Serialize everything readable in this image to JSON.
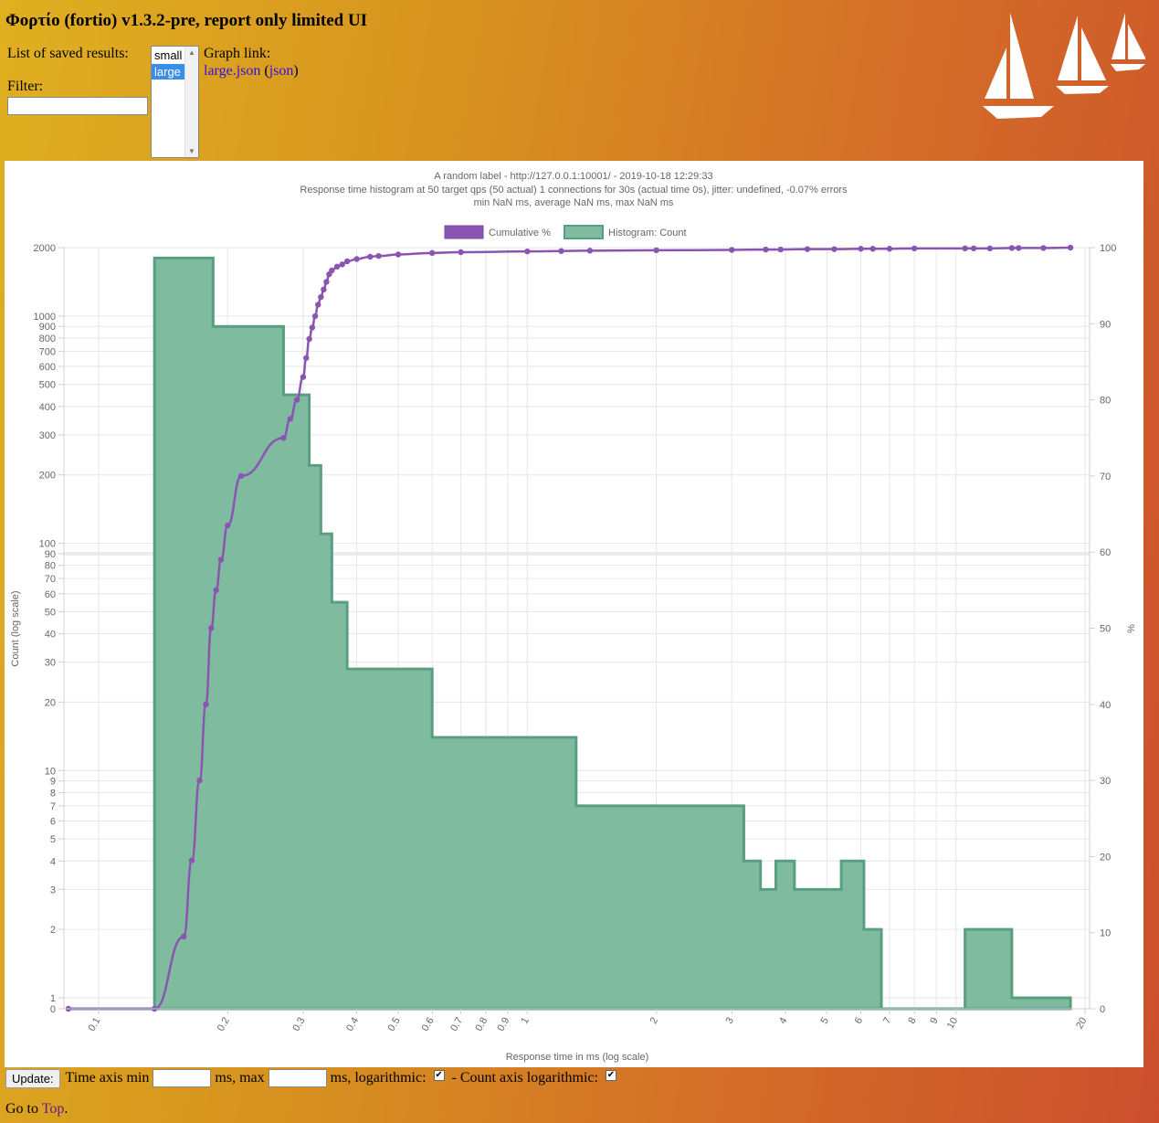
{
  "header": {
    "title": "Φορτίο (fortio) v1.3.2-pre, report only limited UI",
    "saved_results_label": "List of saved results:",
    "filter_label": "Filter:",
    "filter_value": "",
    "graph_link_label": "Graph link:",
    "graph_link_text": "large.json",
    "json_link_open": "(",
    "json_link_text": "json",
    "json_link_close": ")"
  },
  "saved_results": {
    "options": [
      "small",
      "large"
    ],
    "selected": "large"
  },
  "logo": {
    "name": "istio-sails-logo",
    "color": "#ffffff"
  },
  "chart_data": {
    "type": "line",
    "title": [
      "A random label - http://127.0.0.1:10001/ - 2019-10-18 12:29:33",
      "Response time histogram at 50 target qps (50 actual) 1 connections for 30s (actual time 0s), jitter: undefined, -0.07% errors",
      "min NaN ms, average NaN ms, max NaN ms"
    ],
    "legend": {
      "position": "top",
      "entries": [
        "Cumulative %",
        "Histogram: Count"
      ]
    },
    "xlabel": "Response time in ms (log scale)",
    "ylabel_left": "Count (log scale)",
    "ylabel_right": "%",
    "x_scale": "log",
    "y_left_scale": "log",
    "x_ticks": [
      "0.1",
      "0.2",
      "0.3",
      "0.4",
      "0.5",
      "0.6",
      "0.7",
      "0.8",
      "0.9",
      "1",
      "2",
      "3",
      "4",
      "5",
      "6",
      "7",
      "8",
      "9",
      "10",
      "20"
    ],
    "y_left_ticks": [
      "0",
      "1",
      "2",
      "3",
      "4",
      "5",
      "6",
      "7",
      "8",
      "9",
      "10",
      "20",
      "30",
      "40",
      "50",
      "60",
      "70",
      "80",
      "90",
      "100",
      "200",
      "300",
      "400",
      "500",
      "600",
      "700",
      "800",
      "900",
      "1000",
      "2000"
    ],
    "y_right_ticks": [
      "0",
      "10",
      "20",
      "30",
      "40",
      "50",
      "60",
      "70",
      "80",
      "90",
      "100"
    ],
    "y_left_range": [
      0,
      2000
    ],
    "y_right_range": [
      0,
      100
    ],
    "grid": true,
    "series": [
      {
        "name": "Histogram: Count",
        "type": "stepped-area",
        "color": "#5a9e82",
        "fill": "#7fbc9f",
        "x": [
          0.085,
          0.135,
          0.185,
          0.27,
          0.31,
          0.33,
          0.35,
          0.38,
          0.6,
          1.3,
          3.2,
          3.5,
          3.8,
          4.2,
          5.4,
          6.1,
          6.7,
          10.5,
          13.5,
          17
        ],
        "values": [
          0,
          1800,
          900,
          450,
          220,
          110,
          55,
          28,
          14,
          7,
          4,
          3,
          4,
          3,
          4,
          2,
          0,
          2,
          1,
          1
        ]
      },
      {
        "name": "Cumulative %",
        "type": "line",
        "color": "#8a55b0",
        "x": [
          0.085,
          0.135,
          0.158,
          0.165,
          0.172,
          0.178,
          0.183,
          0.188,
          0.193,
          0.2,
          0.215,
          0.27,
          0.28,
          0.29,
          0.3,
          0.305,
          0.31,
          0.315,
          0.32,
          0.325,
          0.33,
          0.335,
          0.34,
          0.345,
          0.35,
          0.36,
          0.37,
          0.38,
          0.4,
          0.43,
          0.45,
          0.5,
          0.6,
          0.7,
          1.0,
          1.2,
          1.4,
          2.0,
          3.0,
          3.6,
          3.9,
          4.5,
          5.2,
          6.0,
          6.4,
          7.0,
          8.0,
          10.5,
          11.0,
          12.0,
          13.5,
          14.0,
          16.0,
          18.5
        ],
        "values": [
          0,
          0,
          9.5,
          19.5,
          30,
          40,
          50,
          55,
          59,
          63.5,
          70,
          75,
          77.5,
          80,
          83,
          85.5,
          88,
          89.5,
          91,
          92.5,
          93.5,
          94.5,
          95.5,
          96.5,
          97,
          97.5,
          97.8,
          98.2,
          98.5,
          98.8,
          98.9,
          99.1,
          99.3,
          99.4,
          99.5,
          99.55,
          99.6,
          99.65,
          99.7,
          99.75,
          99.75,
          99.8,
          99.8,
          99.85,
          99.85,
          99.85,
          99.9,
          99.9,
          99.9,
          99.9,
          99.95,
          99.95,
          99.95,
          100
        ]
      }
    ]
  },
  "controls": {
    "update_button": "Update:",
    "time_axis_min_label": "Time axis min",
    "time_axis_min_value": "",
    "ms_max_label": "ms, max",
    "time_axis_max_value": "",
    "ms_log_label": "ms, logarithmic:",
    "time_log_checked": true,
    "count_axis_log_label": "- Count axis logarithmic:",
    "count_log_checked": true,
    "checkmark": "✔"
  },
  "footer": {
    "goto_text": "Go to",
    "top_link": "Top",
    "period": "."
  }
}
